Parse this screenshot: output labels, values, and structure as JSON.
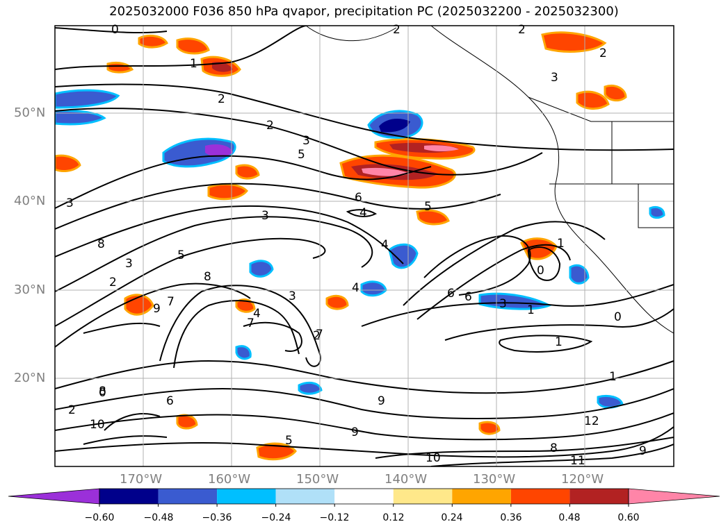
{
  "title": "2025032000 F036 850 hPa qvapor, precipitation PC (2025032200 - 2025032300)",
  "map": {
    "projection": "lat-lon",
    "lat_range": [
      10,
      60
    ],
    "lon_range": [
      -180,
      -110
    ],
    "lat_labels": [
      "50°N",
      "40°N",
      "30°N",
      "20°N"
    ],
    "lon_labels": [
      "170°W",
      "160°W",
      "150°W",
      "140°W",
      "130°W",
      "120°W"
    ],
    "gridlines": true,
    "contour_field": "850 hPa qvapor",
    "contour_labels": [
      "0",
      "2",
      "2",
      "2",
      "1",
      "3",
      "2",
      "2",
      "3",
      "5",
      "6",
      "4",
      "5",
      "3",
      "4",
      "8",
      "5",
      "3",
      "2",
      "1",
      "6",
      "3",
      "8",
      "7",
      "4",
      "7",
      "2",
      "3",
      "3",
      "4",
      "6",
      "1",
      "1",
      "0",
      "1",
      "0",
      "0",
      "9",
      "8",
      "9",
      "10",
      "8",
      "11",
      "9",
      "12",
      "10",
      "2",
      "6",
      "5",
      "9",
      "7"
    ],
    "shaded_field": "precipitation PC"
  },
  "colorbar": {
    "ticks": [
      "−0.60",
      "−0.48",
      "−0.36",
      "−0.24",
      "−0.12",
      "0.12",
      "0.24",
      "0.36",
      "0.48",
      "0.60"
    ],
    "colors": [
      "#9b30d9",
      "#00008b",
      "#3a5bd0",
      "#00bfff",
      "#b0e0f8",
      "#ffffff",
      "#ffe88a",
      "#ffa500",
      "#ff4500",
      "#b22222",
      "#ff85a8",
      "#ff85a8"
    ],
    "extend": "both"
  },
  "colors": {
    "contour": "#000000",
    "grid": "#b0b0b0",
    "label_gray": "#808080"
  }
}
